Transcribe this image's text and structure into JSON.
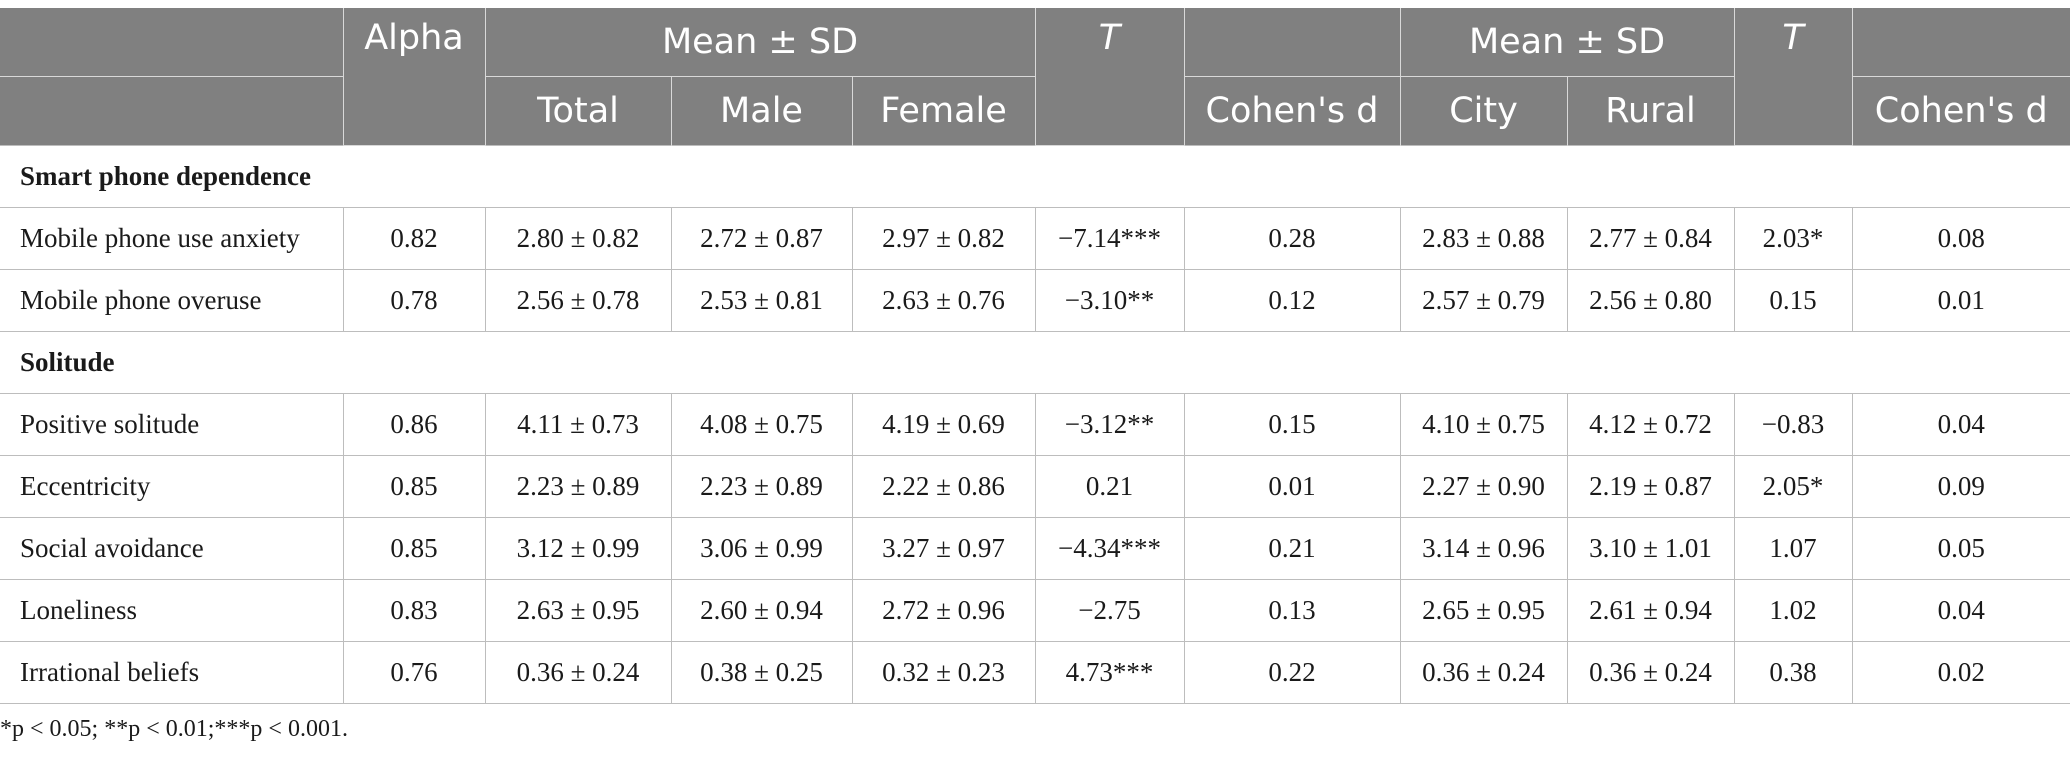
{
  "header": {
    "alpha": "Alpha",
    "mean_sd_1": "Mean ± SD",
    "t_1": "T",
    "mean_sd_2": "Mean ± SD",
    "t_2": "T",
    "total": "Total",
    "male": "Male",
    "female": "Female",
    "cohens_d_1": "Cohen's d",
    "city": "City",
    "rural": "Rural",
    "cohens_d_2": "Cohen's d"
  },
  "groups": [
    {
      "title": "Smart phone dependence",
      "rows": [
        {
          "label": "Mobile phone use anxiety",
          "alpha": "0.82",
          "total": "2.80 ± 0.82",
          "male": "2.72 ± 0.87",
          "female": "2.97 ± 0.82",
          "t1": "−7.14***",
          "d1": "0.28",
          "city": "2.83 ± 0.88",
          "rural": "2.77 ± 0.84",
          "t2": "2.03*",
          "d2": "0.08"
        },
        {
          "label": "Mobile phone overuse",
          "alpha": "0.78",
          "total": "2.56 ± 0.78",
          "male": "2.53 ± 0.81",
          "female": "2.63 ± 0.76",
          "t1": "−3.10**",
          "d1": "0.12",
          "city": "2.57 ± 0.79",
          "rural": "2.56 ± 0.80",
          "t2": "0.15",
          "d2": "0.01"
        }
      ]
    },
    {
      "title": "Solitude",
      "rows": [
        {
          "label": "Positive solitude",
          "alpha": "0.86",
          "total": "4.11 ± 0.73",
          "male": "4.08 ± 0.75",
          "female": "4.19 ± 0.69",
          "t1": "−3.12**",
          "d1": "0.15",
          "city": "4.10 ± 0.75",
          "rural": "4.12 ± 0.72",
          "t2": "−0.83",
          "d2": "0.04"
        },
        {
          "label": "Eccentricity",
          "alpha": "0.85",
          "total": "2.23 ± 0.89",
          "male": "2.23 ± 0.89",
          "female": "2.22 ± 0.86",
          "t1": "0.21",
          "d1": "0.01",
          "city": "2.27 ± 0.90",
          "rural": "2.19 ± 0.87",
          "t2": "2.05*",
          "d2": "0.09"
        },
        {
          "label": "Social avoidance",
          "alpha": "0.85",
          "total": "3.12 ± 0.99",
          "male": "3.06 ± 0.99",
          "female": "3.27 ± 0.97",
          "t1": "−4.34***",
          "d1": "0.21",
          "city": "3.14 ± 0.96",
          "rural": "3.10 ± 1.01",
          "t2": "1.07",
          "d2": "0.05"
        },
        {
          "label": "Loneliness",
          "alpha": "0.83",
          "total": "2.63 ± 0.95",
          "male": "2.60 ± 0.94",
          "female": "2.72 ± 0.96",
          "t1": "−2.75",
          "d1": "0.13",
          "city": "2.65 ± 0.95",
          "rural": "2.61 ± 0.94",
          "t2": "1.02",
          "d2": "0.04"
        },
        {
          "label": "Irrational beliefs",
          "alpha": "0.76",
          "total": "0.36 ± 0.24",
          "male": "0.38 ± 0.25",
          "female": "0.32 ± 0.23",
          "t1": "4.73***",
          "d1": "0.22",
          "city": "0.36 ± 0.24",
          "rural": "0.36 ± 0.24",
          "t2": "0.38",
          "d2": "0.02"
        }
      ]
    }
  ],
  "footnote": "*p < 0.05; **p < 0.01;***p < 0.001."
}
